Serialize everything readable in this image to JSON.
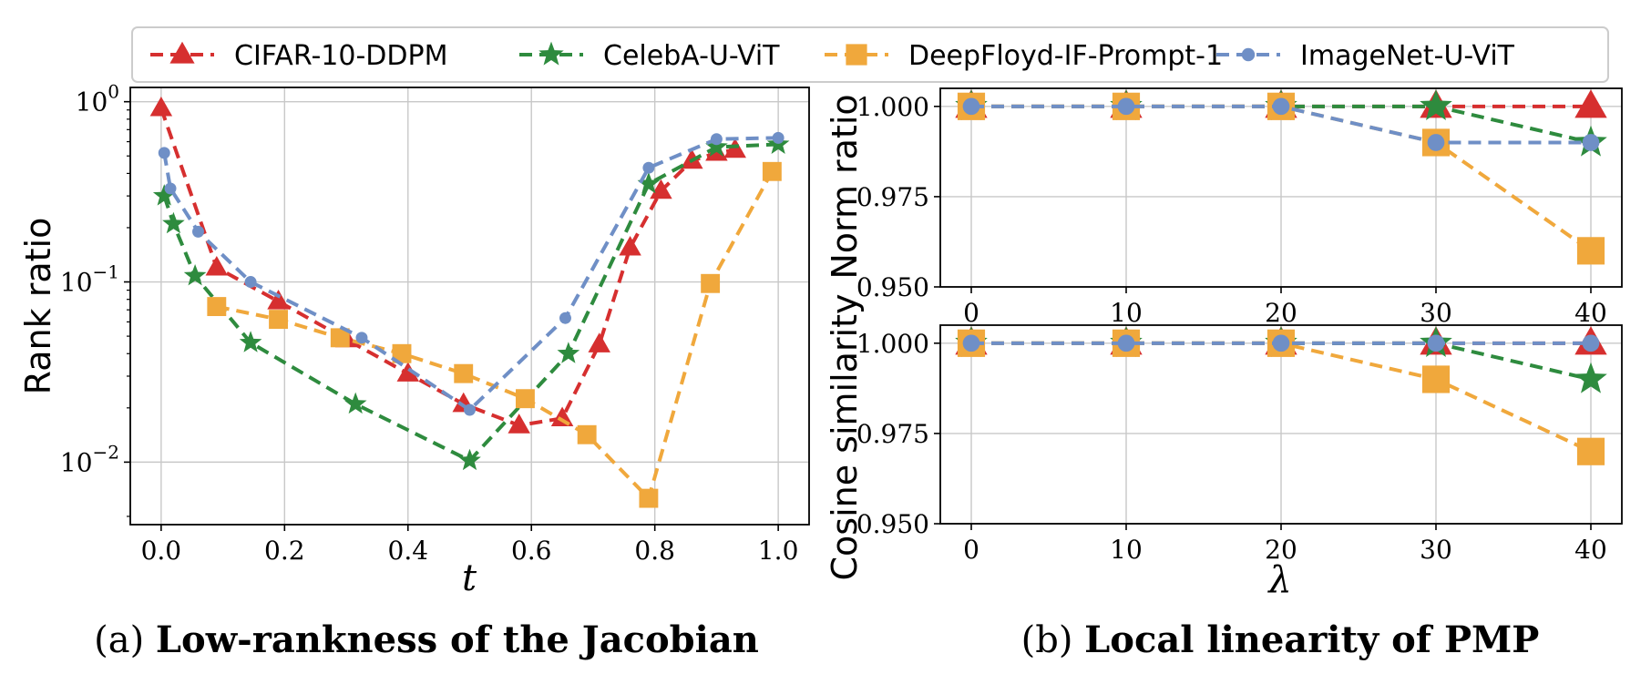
{
  "legend": {
    "entries": [
      {
        "label": "CIFAR-10-DDPM",
        "color": "#d62f2f",
        "marker": "triangle"
      },
      {
        "label": "CelebA-U-ViT",
        "color": "#2e8b3e",
        "marker": "star"
      },
      {
        "label": "DeepFloyd-IF-Prompt-1",
        "color": "#f0a83c",
        "marker": "square"
      },
      {
        "label": "ImageNet-U-ViT",
        "color": "#6f8fc6",
        "marker": "dot"
      }
    ]
  },
  "captions": {
    "a_prefix": "(a)",
    "a_title": "Low-rankness of the Jacobian",
    "b_prefix": "(b)",
    "b_title": "Local linearity of PMP"
  },
  "chart_data": [
    {
      "type": "line",
      "panel": "a",
      "xlabel": "t",
      "ylabel": "Rank ratio",
      "yscale": "log",
      "xlim": [
        -0.05,
        1.05
      ],
      "ylim": [
        0.0045,
        1.2
      ],
      "xticks": [
        0.0,
        0.2,
        0.4,
        0.6,
        0.8,
        1.0
      ],
      "xtick_labels": [
        "0.0",
        "0.2",
        "0.4",
        "0.6",
        "0.8",
        "1.0"
      ],
      "yticks": [
        1,
        0.1,
        0.01
      ],
      "ytick_labels": [
        {
          "base": "10",
          "exp": "0"
        },
        {
          "base": "10",
          "exp": "−1"
        },
        {
          "base": "10",
          "exp": "−2"
        }
      ],
      "grid": true,
      "series": [
        {
          "name": "CIFAR-10-DDPM",
          "x": [
            0.0,
            0.09,
            0.19,
            0.3,
            0.4,
            0.49,
            0.58,
            0.65,
            0.71,
            0.76,
            0.81,
            0.86,
            0.9,
            0.93
          ],
          "y": [
            0.92,
            0.12,
            0.078,
            0.048,
            0.031,
            0.021,
            0.016,
            0.0175,
            0.045,
            0.155,
            0.32,
            0.47,
            0.52,
            0.54
          ]
        },
        {
          "name": "CelebA-U-ViT",
          "x": [
            0.005,
            0.02,
            0.055,
            0.145,
            0.315,
            0.5,
            0.66,
            0.79,
            0.9,
            1.0
          ],
          "y": [
            0.3,
            0.21,
            0.108,
            0.046,
            0.021,
            0.0102,
            0.04,
            0.35,
            0.56,
            0.58
          ]
        },
        {
          "name": "DeepFloyd-IF-Prompt-1",
          "x": [
            0.09,
            0.19,
            0.29,
            0.39,
            0.49,
            0.59,
            0.69,
            0.79,
            0.89,
            0.99
          ],
          "y": [
            0.073,
            0.062,
            0.049,
            0.04,
            0.031,
            0.0225,
            0.0142,
            0.0063,
            0.098,
            0.41
          ]
        },
        {
          "name": "ImageNet-U-ViT",
          "x": [
            0.005,
            0.015,
            0.06,
            0.145,
            0.325,
            0.5,
            0.655,
            0.79,
            0.9,
            1.0
          ],
          "y": [
            0.52,
            0.33,
            0.19,
            0.1,
            0.049,
            0.0195,
            0.063,
            0.43,
            0.62,
            0.63
          ]
        }
      ]
    },
    {
      "type": "line",
      "panel": "b-top",
      "xlabel": "",
      "ylabel": "Norm ratio",
      "xlim": [
        -2,
        42
      ],
      "ylim": [
        0.95,
        1.005
      ],
      "xticks": [
        0,
        10,
        20,
        30,
        40
      ],
      "xtick_labels": [
        "0",
        "10",
        "20",
        "30",
        "40"
      ],
      "yticks": [
        1.0,
        0.975,
        0.95
      ],
      "ytick_labels": [
        "1.000",
        "0.975",
        "0.950"
      ],
      "grid": true,
      "series": [
        {
          "name": "CIFAR-10-DDPM",
          "x": [
            0,
            10,
            20,
            30,
            40
          ],
          "y": [
            1.0,
            1.0,
            1.0,
            1.0,
            1.0
          ]
        },
        {
          "name": "CelebA-U-ViT",
          "x": [
            0,
            10,
            20,
            30,
            40
          ],
          "y": [
            1.0,
            1.0,
            1.0,
            1.0,
            0.99
          ]
        },
        {
          "name": "DeepFloyd-IF-Prompt-1",
          "x": [
            0,
            10,
            20,
            30,
            40
          ],
          "y": [
            1.0,
            1.0,
            1.0,
            0.99,
            0.96
          ]
        },
        {
          "name": "ImageNet-U-ViT",
          "x": [
            0,
            10,
            20,
            30,
            40
          ],
          "y": [
            1.0,
            1.0,
            1.0,
            0.99,
            0.99
          ]
        }
      ]
    },
    {
      "type": "line",
      "panel": "b-bottom",
      "xlabel": "λ",
      "ylabel": "Cosine similarity",
      "xlim": [
        -2,
        42
      ],
      "ylim": [
        0.95,
        1.005
      ],
      "xticks": [
        0,
        10,
        20,
        30,
        40
      ],
      "xtick_labels": [
        "0",
        "10",
        "20",
        "30",
        "40"
      ],
      "yticks": [
        1.0,
        0.975,
        0.95
      ],
      "ytick_labels": [
        "1.000",
        "0.975",
        "0.950"
      ],
      "grid": true,
      "series": [
        {
          "name": "CIFAR-10-DDPM",
          "x": [
            0,
            10,
            20,
            30,
            40
          ],
          "y": [
            1.0,
            1.0,
            1.0,
            1.0,
            1.0
          ]
        },
        {
          "name": "CelebA-U-ViT",
          "x": [
            0,
            10,
            20,
            30,
            40
          ],
          "y": [
            1.0,
            1.0,
            1.0,
            1.0,
            0.99
          ]
        },
        {
          "name": "DeepFloyd-IF-Prompt-1",
          "x": [
            0,
            10,
            20,
            30,
            40
          ],
          "y": [
            1.0,
            1.0,
            1.0,
            0.99,
            0.97
          ]
        },
        {
          "name": "ImageNet-U-ViT",
          "x": [
            0,
            10,
            20,
            30,
            40
          ],
          "y": [
            1.0,
            1.0,
            1.0,
            1.0,
            1.0
          ]
        }
      ]
    }
  ]
}
